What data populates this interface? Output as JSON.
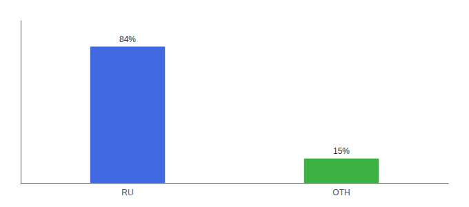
{
  "chart_data": {
    "type": "bar",
    "categories": [
      "RU",
      "OTH"
    ],
    "values": [
      84,
      15
    ],
    "value_labels": [
      "84%",
      "15%"
    ],
    "colors": [
      "#4169e1",
      "#3cb043"
    ],
    "ylim": [
      0,
      100
    ],
    "grid": false,
    "data_labels": true,
    "tick_labels": "x"
  }
}
